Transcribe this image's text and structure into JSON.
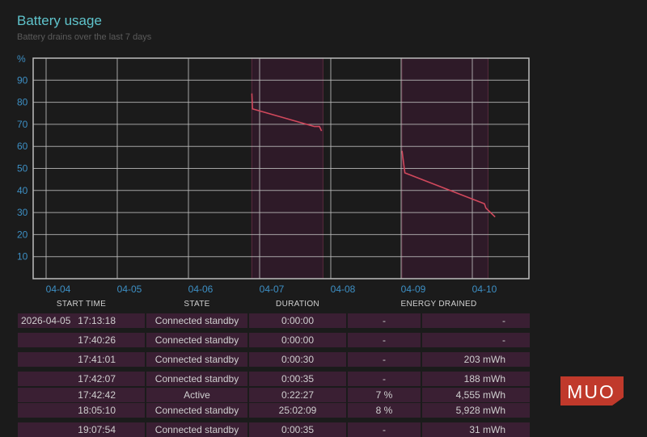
{
  "header": {
    "title": "Battery usage",
    "subtitle": "Battery drains over the last 7 days"
  },
  "chart_data": {
    "type": "line",
    "ylabel": "%",
    "yticks": [
      "90",
      "80",
      "70",
      "60",
      "50",
      "40",
      "30",
      "20",
      "10"
    ],
    "ylim": [
      0,
      100
    ],
    "xticks": [
      "04-04",
      "04-05",
      "04-06",
      "04-07",
      "04-08",
      "04-09",
      "04-10"
    ],
    "x_range": [
      "04-04",
      "04-10"
    ],
    "grid": true,
    "colors": {
      "line": "#d0485c",
      "shade": "#2e1a28",
      "grid": "#bdbdbd",
      "axis": "#3d8fc4"
    },
    "shaded_periods": [
      {
        "start": 2.72,
        "end": 3.72
      },
      {
        "start": 4.84,
        "end": 6.05
      }
    ],
    "series": [
      {
        "points": [
          [
            2.72,
            84
          ],
          [
            2.73,
            77
          ],
          [
            3.6,
            69
          ],
          [
            3.67,
            69
          ],
          [
            3.7,
            67
          ]
        ]
      },
      {
        "points": [
          [
            4.84,
            58
          ],
          [
            4.88,
            48
          ],
          [
            6.0,
            34
          ],
          [
            6.02,
            32
          ],
          [
            6.15,
            28
          ]
        ]
      }
    ]
  },
  "table": {
    "headers": [
      "START TIME",
      "STATE",
      "DURATION",
      "ENERGY DRAINED"
    ],
    "rows": [
      {
        "date": "2026-04-05",
        "time": "17:13:18",
        "state": "Connected standby",
        "duration": "0:00:00",
        "pct": "-",
        "mwh": "-"
      },
      {
        "date": "",
        "time": "17:40:26",
        "state": "Connected standby",
        "duration": "0:00:00",
        "pct": "-",
        "mwh": "-"
      },
      {
        "date": "",
        "time": "17:41:01",
        "state": "Connected standby",
        "duration": "0:00:30",
        "pct": "-",
        "mwh": "203 mWh"
      },
      {
        "date": "",
        "time": "17:42:07",
        "state": "Connected standby",
        "duration": "0:00:35",
        "pct": "-",
        "mwh": "188 mWh"
      },
      {
        "date": "",
        "time": "17:42:42",
        "state": "Active",
        "duration": "0:22:27",
        "pct": "7 %",
        "mwh": "4,555 mWh"
      },
      {
        "date": "",
        "time": "18:05:10",
        "state": "Connected standby",
        "duration": "25:02:09",
        "pct": "8 %",
        "mwh": "5,928 mWh"
      },
      {
        "date": "",
        "time": "19:07:54",
        "state": "Connected standby",
        "duration": "0:00:35",
        "pct": "-",
        "mwh": "31 mWh"
      }
    ]
  },
  "watermark": {
    "text": "MUO",
    "color": "#c0392b"
  }
}
